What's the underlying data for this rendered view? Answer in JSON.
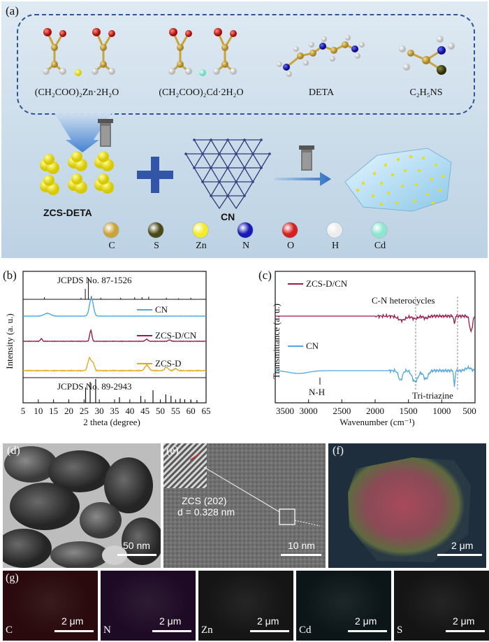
{
  "panel_a": {
    "label": "(a)",
    "molecules": [
      {
        "label": "(CH₂COO)₂Zn·2H₂O"
      },
      {
        "label": "(CH₂COO)₂Cd·2H₂O"
      },
      {
        "label": "DETA"
      },
      {
        "label": "C₂H₅NS"
      }
    ],
    "zcs_label": "ZCS-DETA",
    "cn_label": "CN",
    "legend": [
      {
        "label": "C",
        "color": "#c9a43a"
      },
      {
        "label": "S",
        "color": "#4a4a18"
      },
      {
        "label": "Zn",
        "color": "#f3ec2a"
      },
      {
        "label": "N",
        "color": "#1a1ab4"
      },
      {
        "label": "O",
        "color": "#d42020"
      },
      {
        "label": "H",
        "color": "#ececec"
      },
      {
        "label": "Cd",
        "color": "#8fe6d0"
      }
    ]
  },
  "panel_b": {
    "label": "(b)",
    "ref_top": "JCPDS No. 87-1526",
    "ref_bottom": "JCPDS No. 89-2943",
    "ylabel": "Intensity (a. u.)",
    "xlabel": "2 theta (degree)",
    "xticks": [
      "5",
      "10",
      "15",
      "20",
      "25",
      "30",
      "35",
      "40",
      "45",
      "50",
      "55",
      "60",
      "65"
    ],
    "series": [
      {
        "name": "CN",
        "color": "#4fa8e0"
      },
      {
        "name": "ZCS-D/CN",
        "color": "#9b1b4b"
      },
      {
        "name": "ZCS-D",
        "color": "#e0a91e"
      }
    ]
  },
  "panel_c": {
    "label": "(c)",
    "ylabel": "Transmittance (a. u.)",
    "xlabel": "Wavenumber (cm⁻¹)",
    "xticks": [
      "3500",
      "3000",
      "2500",
      "2000",
      "1500",
      "1000",
      "500"
    ],
    "series": [
      {
        "name": "ZCS-D/CN",
        "color": "#9b1b4b"
      },
      {
        "name": "CN",
        "color": "#4fa8e0"
      }
    ],
    "annotations": {
      "heterocycles": "C-N heterocycles",
      "nh": "N-H",
      "triazine": "Tri-triazine"
    }
  },
  "panel_d": {
    "label": "(d)",
    "scale": "50 nm"
  },
  "panel_e": {
    "label": "(e)",
    "scale": "10 nm",
    "plane": "ZCS (202)",
    "dspacing": "d = 0.328 nm"
  },
  "panel_f": {
    "label": "(f)",
    "scale": "2 μm"
  },
  "panel_g": {
    "label": "(g)",
    "maps": [
      {
        "element": "C",
        "scale": "2 μm",
        "tint": "#2a0a0c"
      },
      {
        "element": "N",
        "scale": "2 μm",
        "tint": "#1e0a24"
      },
      {
        "element": "Zn",
        "scale": "2 μm",
        "tint": "#151515"
      },
      {
        "element": "Cd",
        "scale": "2 μm",
        "tint": "#0c1618"
      },
      {
        "element": "S",
        "scale": "2 μm",
        "tint": "#141414"
      }
    ]
  }
}
